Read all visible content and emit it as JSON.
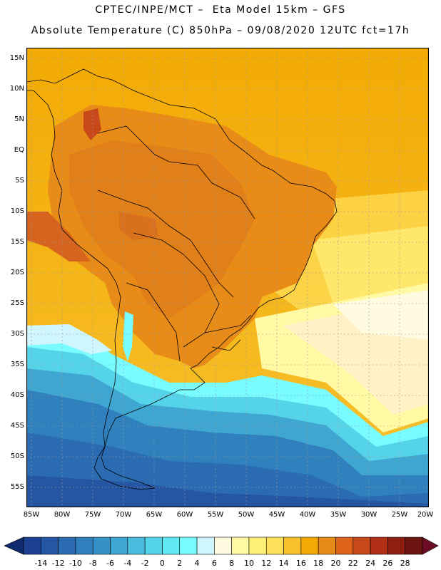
{
  "header": {
    "line1": "CPTEC/INPE/MCT –  Eta Model 15km – GFS",
    "line2": "Absolute Temperature (C) 850hPa – 09/08/2020 12UTC fct=17h"
  },
  "map": {
    "lat_labels": [
      "15N",
      "10N",
      "5N",
      "EQ",
      "5S",
      "10S",
      "15S",
      "20S",
      "25S",
      "30S",
      "35S",
      "40S",
      "45S",
      "50S",
      "55S"
    ],
    "lon_labels": [
      "85W",
      "80W",
      "75W",
      "70W",
      "65W",
      "60W",
      "55W",
      "50W",
      "45W",
      "40W",
      "35W",
      "30W",
      "25W",
      "20W"
    ],
    "field_colors": {
      "ocean_warm": "#f5a800",
      "land_warm": "#e4891a",
      "hot": "#d7641e",
      "cold_ocean": "#2f8fc4",
      "coldest": "#1f4fa0",
      "frontal": "#fff2c6"
    }
  },
  "colorbar": {
    "labels": [
      "-14",
      "-12",
      "-10",
      "-8",
      "-6",
      "-4",
      "-2",
      "0",
      "2",
      "4",
      "6",
      "8",
      "10",
      "12",
      "14",
      "16",
      "18",
      "20",
      "22",
      "24",
      "26",
      "28"
    ],
    "colors": [
      "#1c3f91",
      "#2556a3",
      "#2a6bb2",
      "#2f80bd",
      "#3592c6",
      "#3ea6d1",
      "#49bcdd",
      "#55d3e8",
      "#61e9f3",
      "#78fcff",
      "#cff6fd",
      "#fffbe0",
      "#fffaa3",
      "#fff07a",
      "#ffe05a",
      "#f7c22e",
      "#f3aa04",
      "#e88b17",
      "#de631a",
      "#c74818",
      "#b02f14",
      "#8d1e10",
      "#6b1410"
    ],
    "left_arrow": "#0f2a6e",
    "right_arrow": "#6b0d24"
  }
}
